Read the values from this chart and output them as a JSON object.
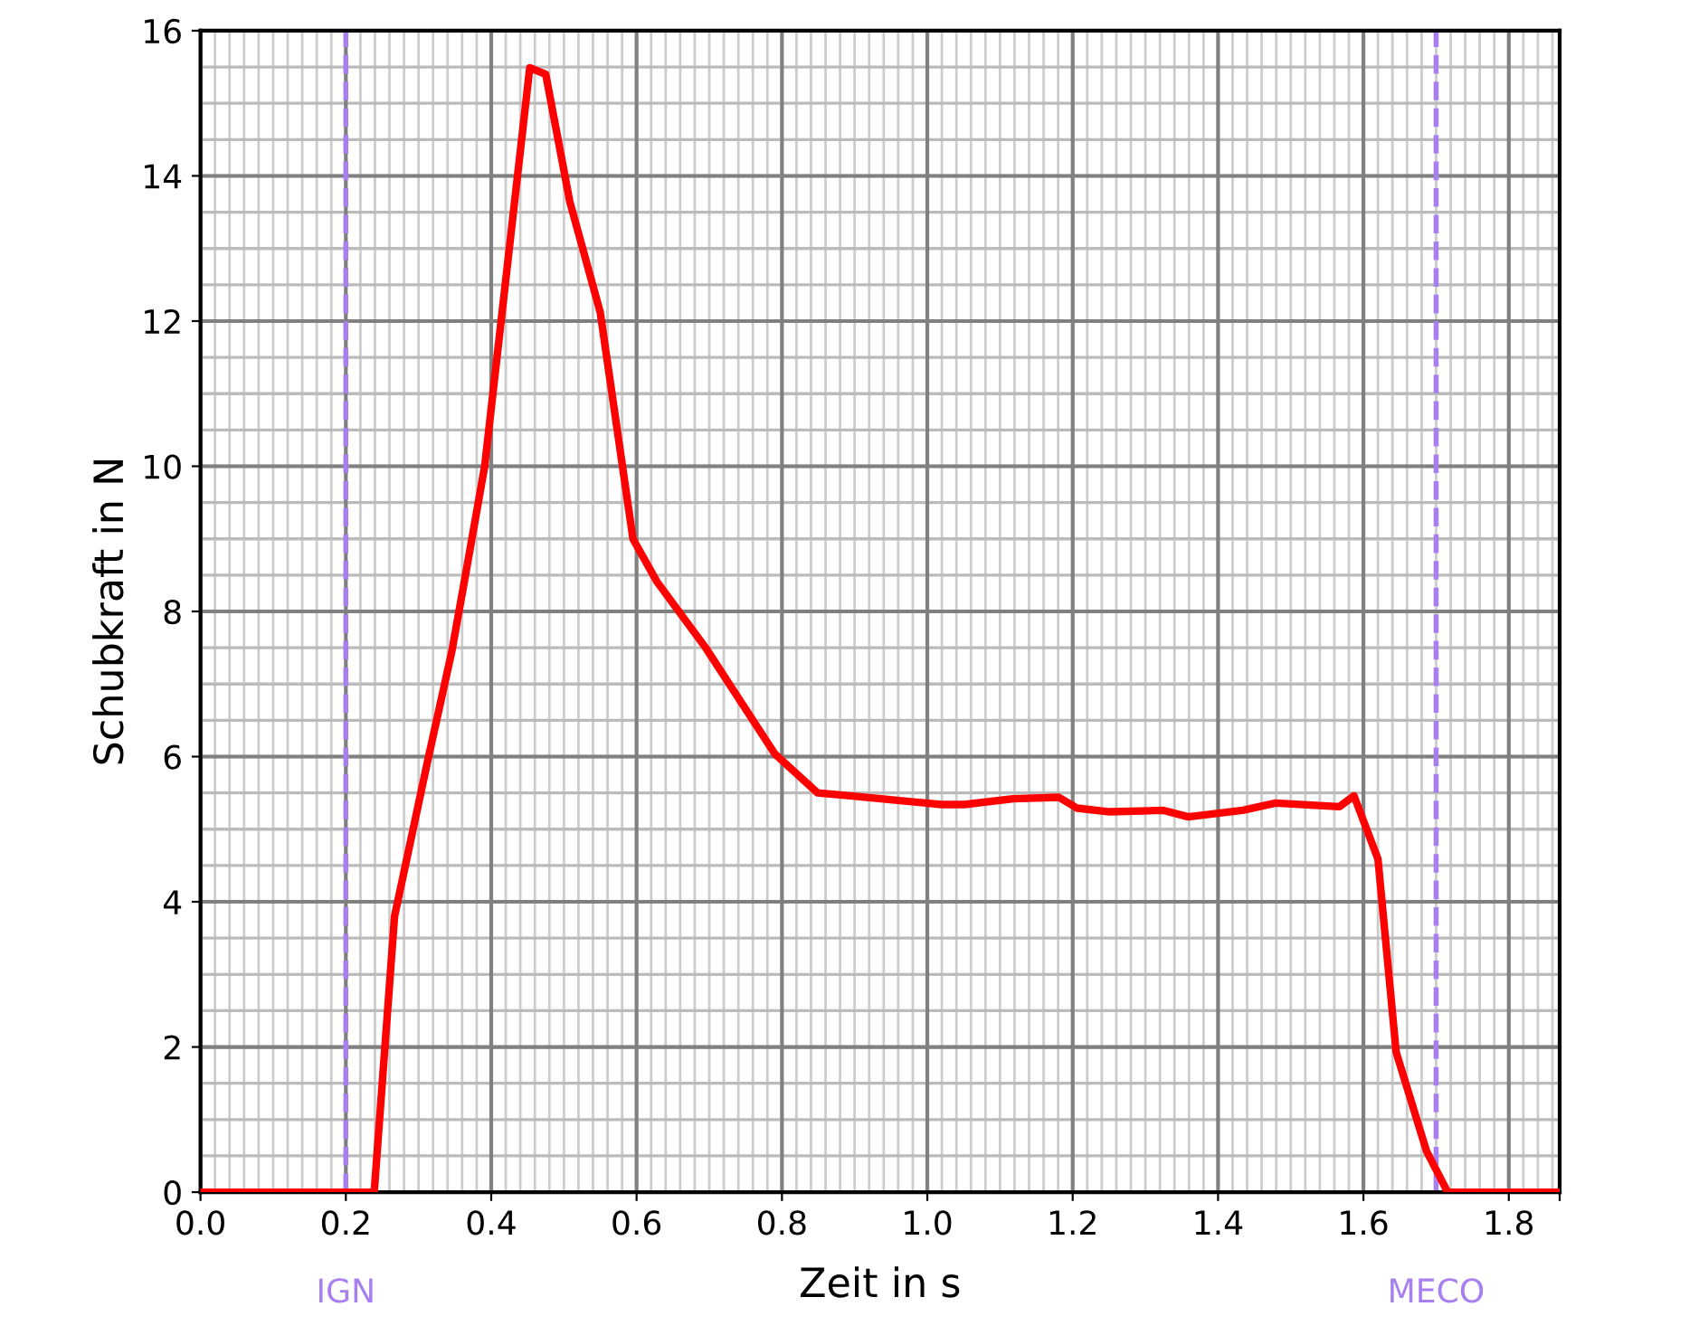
{
  "chart_data": {
    "type": "line",
    "xlabel": "Zeit in s",
    "ylabel": "Schubkraft in N",
    "series": [
      {
        "color": "#ff0000",
        "line_style": "solid",
        "x": [
          0,
          0.239,
          0.267,
          0.313,
          0.346,
          0.363,
          0.391,
          0.453,
          0.475,
          0.508,
          0.55,
          0.595,
          0.628,
          0.695,
          0.79,
          0.849,
          0.894,
          1.019,
          1.051,
          1.118,
          1.181,
          1.206,
          1.251,
          1.325,
          1.359,
          1.434,
          1.479,
          1.567,
          1.587,
          1.62,
          1.645,
          1.687,
          1.716,
          1.87
        ],
        "values": [
          0,
          0,
          3.8,
          5.96,
          7.46,
          8.41,
          10.0,
          15.49,
          15.4,
          13.65,
          12.12,
          9.0,
          8.41,
          7.5,
          6.04,
          5.5,
          5.46,
          5.34,
          5.34,
          5.42,
          5.44,
          5.29,
          5.24,
          5.26,
          5.17,
          5.26,
          5.36,
          5.31,
          5.46,
          4.59,
          1.93,
          0.56,
          0,
          0
        ]
      }
    ],
    "xlim": [
      0,
      1.87
    ],
    "ylim": [
      0,
      16
    ],
    "xticks": [
      {
        "value": 0,
        "label": "0.0"
      },
      0.2,
      0.4,
      0.6,
      0.8,
      {
        "value": 1,
        "label": "1.0"
      },
      1.2,
      1.4,
      1.6,
      1.8,
      {
        "value": 1.87,
        "label": null
      }
    ],
    "yticks": [
      0,
      2,
      4,
      6,
      8,
      10,
      12,
      14,
      16
    ],
    "grid": true,
    "legend": false,
    "marker": "none",
    "ref_lines": [
      {
        "axis": "x",
        "value": 0.2,
        "label": "IGN",
        "color": "#a77ff0",
        "line_style": "dashed"
      },
      {
        "axis": "x",
        "value": 1.7,
        "label": "MECO",
        "color": "#a77ff0",
        "line_style": "dashed"
      }
    ]
  }
}
